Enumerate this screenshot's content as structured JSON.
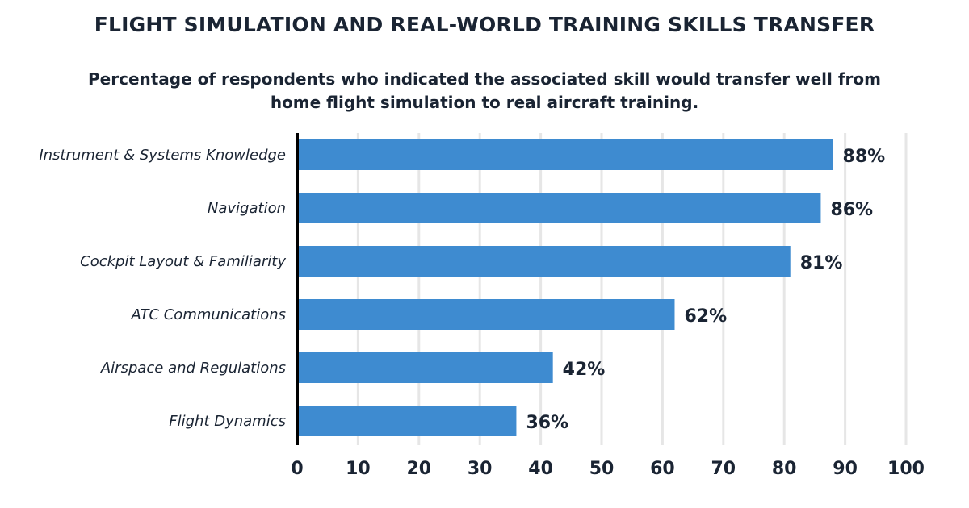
{
  "chart_data": {
    "type": "bar",
    "orientation": "horizontal",
    "title": "FLIGHT SIMULATION AND REAL-WORLD TRAINING SKILLS TRANSFER",
    "subtitle": "Percentage of respondents who indicated the associated skill would transfer well from home flight simulation to real aircraft training.",
    "categories": [
      "Instrument & Systems Knowledge",
      "Navigation",
      "Cockpit Layout & Familiarity",
      "ATC Communications",
      "Airspace and Regulations",
      "Flight Dynamics"
    ],
    "values": [
      88,
      86,
      81,
      62,
      42,
      36
    ],
    "value_labels": [
      "88%",
      "86%",
      "81%",
      "62%",
      "42%",
      "36%"
    ],
    "xlim": [
      0,
      100
    ],
    "xticks": [
      "0",
      "10",
      "20",
      "30",
      "40",
      "50",
      "60",
      "70",
      "80",
      "90",
      "100"
    ],
    "grid": true,
    "bar_color": "#3e8bd0",
    "xlabel": "",
    "ylabel": ""
  }
}
